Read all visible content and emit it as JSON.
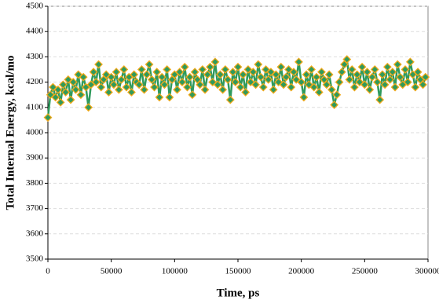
{
  "chart_data": {
    "type": "line",
    "xlabel": "Time, ps",
    "ylabel": "Total Internal Energy, kcal/mo",
    "x": [
      0,
      2000,
      4000,
      6000,
      8000,
      10000,
      12000,
      14000,
      16000,
      18000,
      20000,
      22000,
      24000,
      26000,
      28000,
      30000,
      32000,
      34000,
      36000,
      38000,
      40000,
      42000,
      44000,
      46000,
      48000,
      50000,
      52000,
      54000,
      56000,
      58000,
      60000,
      62000,
      64000,
      66000,
      68000,
      70000,
      72000,
      74000,
      76000,
      78000,
      80000,
      82000,
      84000,
      86000,
      88000,
      90000,
      92000,
      94000,
      96000,
      98000,
      100000,
      102000,
      104000,
      106000,
      108000,
      110000,
      112000,
      114000,
      116000,
      118000,
      120000,
      122000,
      124000,
      126000,
      128000,
      130000,
      132000,
      134000,
      136000,
      138000,
      140000,
      142000,
      144000,
      146000,
      148000,
      150000,
      152000,
      154000,
      156000,
      158000,
      160000,
      162000,
      164000,
      166000,
      168000,
      170000,
      172000,
      174000,
      176000,
      178000,
      180000,
      182000,
      184000,
      186000,
      188000,
      190000,
      192000,
      194000,
      196000,
      198000,
      200000,
      202000,
      204000,
      206000,
      208000,
      210000,
      212000,
      214000,
      216000,
      218000,
      220000,
      222000,
      224000,
      226000,
      228000,
      230000,
      232000,
      234000,
      236000,
      238000,
      240000,
      242000,
      244000,
      246000,
      248000,
      250000,
      252000,
      254000,
      256000,
      258000,
      260000,
      262000,
      264000,
      266000,
      268000,
      270000,
      272000,
      274000,
      276000,
      278000,
      280000,
      282000,
      284000,
      286000,
      288000,
      290000,
      292000,
      294000,
      296000,
      298000
    ],
    "values": [
      4060,
      4150,
      4180,
      4140,
      4170,
      4120,
      4190,
      4160,
      4210,
      4130,
      4200,
      4170,
      4230,
      4150,
      4220,
      4180,
      4100,
      4190,
      4240,
      4200,
      4270,
      4180,
      4210,
      4230,
      4160,
      4220,
      4190,
      4240,
      4170,
      4210,
      4250,
      4180,
      4220,
      4160,
      4230,
      4200,
      4190,
      4250,
      4170,
      4230,
      4270,
      4210,
      4180,
      4240,
      4140,
      4220,
      4190,
      4250,
      4140,
      4210,
      4230,
      4170,
      4240,
      4200,
      4260,
      4180,
      4220,
      4150,
      4240,
      4210,
      4190,
      4250,
      4170,
      4230,
      4260,
      4200,
      4280,
      4190,
      4230,
      4170,
      4250,
      4210,
      4130,
      4240,
      4200,
      4260,
      4180,
      4230,
      4160,
      4250,
      4200,
      4240,
      4190,
      4270,
      4220,
      4180,
      4250,
      4210,
      4240,
      4170,
      4230,
      4200,
      4260,
      4190,
      4220,
      4250,
      4180,
      4240,
      4210,
      4280,
      4200,
      4140,
      4230,
      4190,
      4250,
      4180,
      4220,
      4160,
      4240,
      4210,
      4190,
      4230,
      4170,
      4110,
      4150,
      4200,
      4240,
      4270,
      4290,
      4210,
      4250,
      4180,
      4230,
      4200,
      4260,
      4190,
      4240,
      4170,
      4220,
      4250,
      4200,
      4130,
      4230,
      4190,
      4260,
      4210,
      4240,
      4180,
      4270,
      4220,
      4190,
      4250,
      4200,
      4280,
      4230,
      4180,
      4240,
      4210,
      4190,
      4220
    ],
    "color": "#2f9a5c",
    "marker_edge_color": "#f0a818",
    "xlim": [
      0,
      300000
    ],
    "xticks": [
      0,
      50000,
      100000,
      150000,
      200000,
      250000,
      300000
    ],
    "ylim": [
      3500,
      4500
    ],
    "yticks": [
      3500,
      3600,
      3700,
      3800,
      3900,
      4000,
      4100,
      4200,
      4300,
      4400,
      4500
    ],
    "grid": true
  }
}
